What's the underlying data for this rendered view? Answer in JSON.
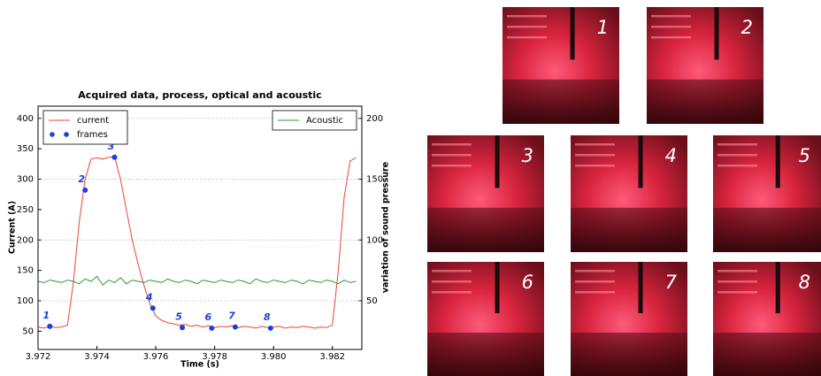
{
  "chart_data": {
    "type": "line",
    "title": "Acquired data, process, optical and acoustic",
    "xlabel": "Time (s)",
    "ylabel": "Current (A)",
    "y2label": "variation of sound pressure",
    "xlim": [
      3.972,
      3.983
    ],
    "ylim": [
      20,
      420
    ],
    "y2lim": [
      10,
      210
    ],
    "xticks": [
      3.972,
      3.974,
      3.976,
      3.978,
      {
        "value": 3.98,
        "label": "3.980"
      },
      3.982
    ],
    "yticks": [
      50,
      100,
      150,
      200,
      250,
      300,
      350,
      400
    ],
    "y2ticks": [
      50,
      100,
      150,
      200
    ],
    "grid": true,
    "x": [
      3.972,
      3.9722,
      3.9724,
      3.9726,
      3.9728,
      3.973,
      3.9732,
      3.9734,
      3.9736,
      3.9738,
      3.974,
      3.9742,
      3.9744,
      3.9746,
      3.9748,
      3.975,
      3.9752,
      3.9754,
      3.9756,
      3.9758,
      3.976,
      3.9762,
      3.9764,
      3.9766,
      3.9768,
      3.977,
      3.9772,
      3.9774,
      3.9776,
      3.9778,
      3.978,
      3.9782,
      3.9784,
      3.9786,
      3.9788,
      3.979,
      3.9792,
      3.9794,
      3.9796,
      3.9798,
      3.98,
      3.9802,
      3.9804,
      3.9806,
      3.9808,
      3.981,
      3.9812,
      3.9814,
      3.9816,
      3.9818,
      3.982,
      3.9822,
      3.9824,
      3.9826,
      3.9828
    ],
    "series": [
      {
        "name": "current",
        "color": "#e8463a",
        "legend": "upper left",
        "values": [
          57,
          55,
          58,
          56,
          57,
          60,
          130,
          230,
          300,
          333,
          335,
          333,
          336,
          337,
          300,
          250,
          200,
          160,
          125,
          95,
          75,
          68,
          64,
          62,
          60,
          61,
          58,
          60,
          57,
          59,
          56,
          58,
          57,
          59,
          56,
          58,
          57,
          55,
          58,
          56,
          57,
          58,
          55,
          57,
          56,
          58,
          57,
          55,
          57,
          56,
          60,
          150,
          270,
          330,
          335
        ]
      },
      {
        "name": "Acoustic",
        "color": "#2a9a2a",
        "axis": "y2",
        "legend": "upper right",
        "values": [
          66,
          65,
          67,
          66,
          65,
          67,
          66,
          64,
          68,
          66,
          70,
          63,
          67,
          65,
          69,
          64,
          67,
          66,
          65,
          67,
          66,
          65,
          68,
          66,
          65,
          67,
          66,
          64,
          67,
          66,
          65,
          67,
          66,
          65,
          67,
          66,
          64,
          68,
          66,
          65,
          67,
          66,
          65,
          67,
          66,
          64,
          67,
          66,
          65,
          67,
          66,
          64,
          67,
          65,
          66
        ]
      },
      {
        "name": "frames",
        "type": "scatter",
        "color": "#1a3ee0",
        "legend": "upper left",
        "x": [
          3.9724,
          3.9736,
          3.9746,
          3.9759,
          3.9769,
          3.9779,
          3.9787,
          3.9799
        ],
        "values": [
          58,
          282,
          336,
          88,
          56,
          55,
          57,
          55
        ],
        "labels": [
          "1",
          "2",
          "3",
          "4",
          "5",
          "6",
          "7",
          "8"
        ]
      }
    ]
  },
  "images": [
    {
      "label": "1"
    },
    {
      "label": "2"
    },
    {
      "label": "3"
    },
    {
      "label": "4"
    },
    {
      "label": "5"
    },
    {
      "label": "6"
    },
    {
      "label": "7"
    },
    {
      "label": "8"
    }
  ]
}
